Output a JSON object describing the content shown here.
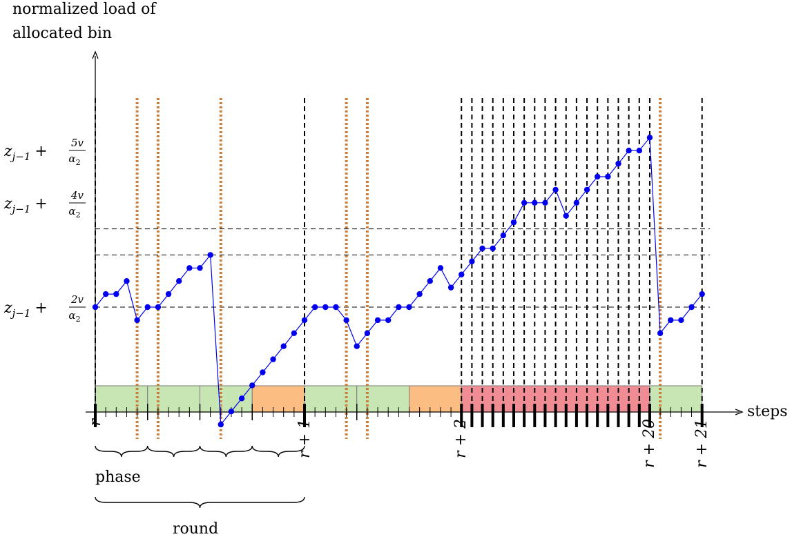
{
  "y_axis_title": [
    "normalized load of",
    "allocated bin"
  ],
  "x_axis_title": "steps",
  "y_levels": [
    {
      "sub": "j−1",
      "num": "2v",
      "value": 2
    },
    {
      "sub": "j−1",
      "num": "4v",
      "value": 4
    },
    {
      "sub": "j−1",
      "num": "5v",
      "value": 5
    }
  ],
  "y_label_parts": {
    "z": "z",
    "plus": "+",
    "den": "α",
    "den_sub": "2"
  },
  "x_labels": [
    {
      "text": "r",
      "step": 0
    },
    {
      "text": "r + 1",
      "step": 20
    },
    {
      "text": "r + 2",
      "step": 35
    },
    {
      "text": "r + 20",
      "step": 53
    },
    {
      "text": "r + 21",
      "step": 58
    }
  ],
  "brace_labels": {
    "phase": "phase",
    "round": "round"
  },
  "colors": {
    "curve": "#0000ee",
    "green": "#c8e6b4",
    "orange": "#fcbd82",
    "red": "#f08c94",
    "dotted": "#c87f3c",
    "dashed": "#000000"
  },
  "chart_data": {
    "type": "line",
    "xlabel": "steps",
    "ylabel": "normalized load of allocated bin",
    "x": [
      0,
      1,
      2,
      3,
      4,
      5,
      6,
      7,
      8,
      9,
      10,
      11,
      12,
      13,
      14,
      15,
      16,
      17,
      18,
      19,
      20,
      21,
      22,
      23,
      24,
      25,
      26,
      27,
      28,
      29,
      30,
      31,
      32,
      33,
      34,
      35,
      36,
      37,
      38,
      39,
      40,
      41,
      42,
      43,
      44,
      45,
      46,
      47,
      48,
      49,
      50,
      51,
      52,
      53,
      54,
      55,
      56,
      57,
      58
    ],
    "values": [
      2,
      2.5,
      2.5,
      3,
      1.5,
      2,
      2,
      2.5,
      3,
      3.5,
      3.5,
      4,
      -2.5,
      -2,
      -1.5,
      -1,
      -0.5,
      0,
      0.5,
      1,
      1.5,
      2,
      2,
      2,
      1.5,
      0.5,
      1,
      1.5,
      1.5,
      2,
      2,
      2.5,
      3,
      3.5,
      2.75,
      3.25,
      3.75,
      4.25,
      4.25,
      4.75,
      5.25,
      6,
      6,
      6,
      6.5,
      5.5,
      6,
      6.5,
      7,
      7,
      7.5,
      8,
      8,
      8.5,
      1,
      1.5,
      1.5,
      2,
      2.5
    ],
    "segments": [
      {
        "start": 0,
        "end": 5,
        "color": "green"
      },
      {
        "start": 5,
        "end": 10,
        "color": "green"
      },
      {
        "start": 10,
        "end": 15,
        "color": "green"
      },
      {
        "start": 15,
        "end": 20,
        "color": "orange"
      },
      {
        "start": 20,
        "end": 25,
        "color": "green"
      },
      {
        "start": 25,
        "end": 30,
        "color": "green"
      },
      {
        "start": 30,
        "end": 35,
        "color": "orange"
      },
      {
        "start": 35,
        "end": 53,
        "color": "red"
      },
      {
        "start": 53,
        "end": 58,
        "color": "green"
      }
    ],
    "phase_boundaries": [
      0,
      5,
      10,
      15,
      25
    ],
    "round_boundaries": [
      0,
      20,
      35
    ],
    "dashed_vertical_steps": [
      0,
      20,
      35,
      36,
      37,
      38,
      39,
      40,
      41,
      42,
      43,
      44,
      45,
      46,
      47,
      48,
      49,
      50,
      51,
      52,
      53,
      58
    ],
    "dotted_vertical_steps": [
      4,
      6,
      12,
      24,
      26,
      54
    ],
    "phase_braces": [
      [
        0,
        5
      ],
      [
        5,
        10
      ],
      [
        10,
        15
      ],
      [
        15,
        20
      ]
    ],
    "round_brace": [
      0,
      20
    ]
  }
}
